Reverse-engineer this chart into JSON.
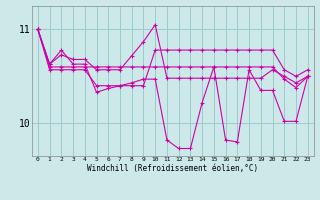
{
  "background_color": "#cce8e8",
  "grid_color": "#99cccc",
  "line_color": "#cc00aa",
  "xlabel": "Windchill (Refroidissement éolien,°C)",
  "xlim": [
    -0.5,
    23.5
  ],
  "ylim": [
    9.65,
    11.25
  ],
  "yticks": [
    10,
    11
  ],
  "xticks": [
    0,
    1,
    2,
    3,
    4,
    5,
    6,
    7,
    8,
    9,
    10,
    11,
    12,
    13,
    14,
    15,
    16,
    17,
    18,
    19,
    20,
    21,
    22,
    23
  ],
  "series": [
    [
      11.0,
      10.57,
      10.57,
      10.57,
      10.57,
      10.4,
      10.4,
      10.4,
      10.4,
      10.4,
      10.78,
      10.78,
      10.78,
      10.78,
      10.78,
      10.78,
      10.78,
      10.78,
      10.78,
      10.78,
      10.78,
      10.57,
      10.5,
      10.57
    ],
    [
      11.0,
      10.63,
      10.73,
      10.68,
      10.68,
      10.57,
      10.57,
      10.57,
      10.72,
      10.87,
      11.05,
      10.48,
      10.48,
      10.48,
      10.48,
      10.48,
      10.48,
      10.48,
      10.48,
      10.48,
      10.57,
      10.5,
      10.43,
      10.5
    ],
    [
      11.0,
      10.6,
      10.6,
      10.6,
      10.6,
      10.6,
      10.6,
      10.6,
      10.6,
      10.6,
      10.6,
      10.6,
      10.6,
      10.6,
      10.6,
      10.6,
      10.6,
      10.6,
      10.6,
      10.6,
      10.6,
      10.47,
      10.38,
      10.5
    ],
    [
      11.0,
      10.63,
      10.78,
      10.63,
      10.63,
      10.33,
      10.37,
      10.4,
      10.43,
      10.47,
      10.47,
      9.82,
      9.73,
      9.73,
      10.22,
      10.6,
      9.82,
      9.8,
      10.57,
      10.35,
      10.35,
      10.02,
      10.02,
      10.5
    ]
  ]
}
